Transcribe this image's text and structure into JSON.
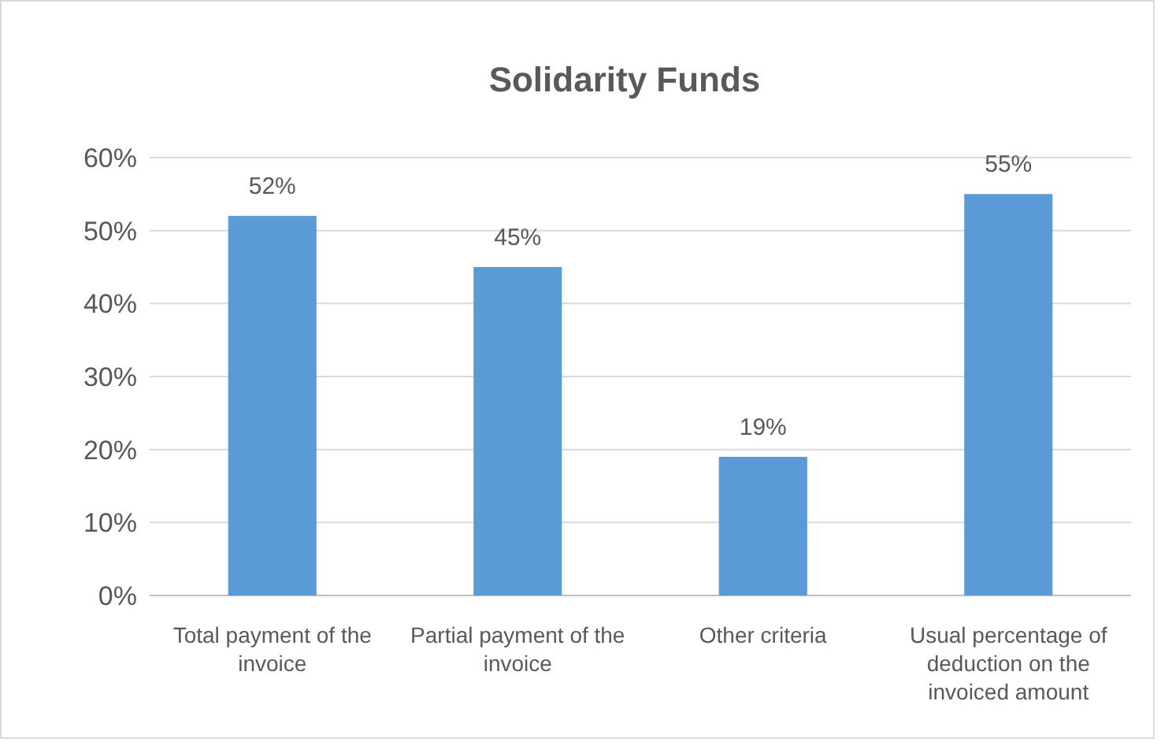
{
  "chart_data": {
    "type": "bar",
    "title": "Solidarity Funds",
    "categories": [
      "Total payment of the invoice",
      "Partial payment of the invoice",
      "Other criteria",
      "Usual percentage of deduction on the invoiced amount"
    ],
    "values": [
      52,
      45,
      19,
      55
    ],
    "color": "#5b9bd5",
    "ylim": [
      0,
      60
    ],
    "yticks": [
      {
        "value": 0,
        "label": "0%"
      },
      {
        "value": 10,
        "label": "10%"
      },
      {
        "value": 20,
        "label": "20%"
      },
      {
        "value": 30,
        "label": "30%"
      },
      {
        "value": 40,
        "label": "40%"
      },
      {
        "value": 50,
        "label": "50%"
      },
      {
        "value": 60,
        "label": "60%"
      }
    ],
    "value_labels": [
      "52%",
      "45%",
      "19%",
      "55%"
    ],
    "grid": "y"
  }
}
